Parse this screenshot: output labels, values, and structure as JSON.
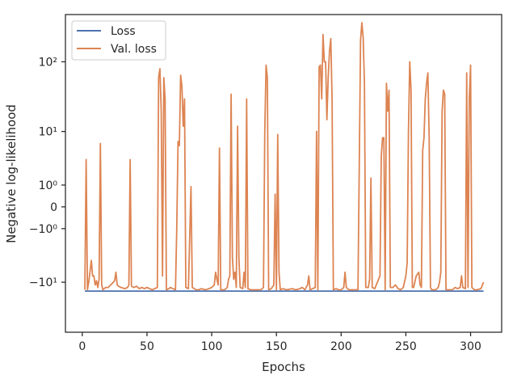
{
  "chart_data": {
    "type": "line",
    "title": "",
    "xlabel": "Epochs",
    "ylabel": "Negative log-likelihood",
    "xlim": [
      -13,
      324
    ],
    "ylim": [
      -53,
      453
    ],
    "yscale": "symlog",
    "x_ticks": [
      0,
      50,
      100,
      150,
      200,
      250,
      300
    ],
    "y_ticks": [
      {
        "value": -10,
        "label": "−10¹"
      },
      {
        "value": -1,
        "label": "−10⁰"
      },
      {
        "value": 0,
        "label": "0"
      },
      {
        "value": 1,
        "label": "10⁰"
      },
      {
        "value": 10,
        "label": "10¹"
      },
      {
        "value": 100,
        "label": "10²"
      }
    ],
    "grid": false,
    "legend_position": "top-left",
    "series": [
      {
        "name": "Loss",
        "color": "#4c72b0",
        "points": [
          [
            2,
            -13.6
          ],
          [
            100,
            -13.6
          ],
          [
            200,
            -13.6
          ],
          [
            310,
            -13.6
          ]
        ]
      },
      {
        "name": "Val. loss",
        "color": "#dd8452",
        "points": [
          [
            2,
            -13
          ],
          [
            3,
            3.5
          ],
          [
            4,
            -13
          ],
          [
            5,
            -10
          ],
          [
            7,
            -4.5
          ],
          [
            8,
            -8
          ],
          [
            9,
            -8
          ],
          [
            10,
            -11
          ],
          [
            11,
            -9.5
          ],
          [
            12,
            -12
          ],
          [
            13,
            -9
          ],
          [
            14,
            6.5
          ],
          [
            15,
            -11
          ],
          [
            16,
            -13
          ],
          [
            18,
            -12
          ],
          [
            20,
            -12
          ],
          [
            22,
            -11
          ],
          [
            24,
            -10
          ],
          [
            25,
            -9.5
          ],
          [
            26,
            -7
          ],
          [
            27,
            -11
          ],
          [
            28,
            -11.5
          ],
          [
            30,
            -12
          ],
          [
            33,
            -12.5
          ],
          [
            35,
            -12
          ],
          [
            36,
            -11
          ],
          [
            37,
            3.5
          ],
          [
            38,
            -11.5
          ],
          [
            40,
            -12
          ],
          [
            42,
            -11.5
          ],
          [
            44,
            -12.5
          ],
          [
            46,
            -12
          ],
          [
            48,
            -12.5
          ],
          [
            50,
            -12
          ],
          [
            52,
            -12.5
          ],
          [
            54,
            -13
          ],
          [
            56,
            -12.5
          ],
          [
            58,
            -12
          ],
          [
            59,
            60
          ],
          [
            60,
            80
          ],
          [
            61,
            20
          ],
          [
            62,
            -8
          ],
          [
            63,
            60
          ],
          [
            64,
            30
          ],
          [
            65,
            -13
          ],
          [
            67,
            -12.5
          ],
          [
            68,
            -12
          ],
          [
            70,
            -12.5
          ],
          [
            72,
            -13
          ],
          [
            73,
            -1
          ],
          [
            74,
            7
          ],
          [
            75,
            6
          ],
          [
            76,
            65
          ],
          [
            77,
            45
          ],
          [
            78,
            12
          ],
          [
            79,
            30
          ],
          [
            80,
            -12
          ],
          [
            82,
            -12.5
          ],
          [
            84,
            0.9
          ],
          [
            85,
            -12
          ],
          [
            88,
            -13
          ],
          [
            90,
            -13
          ],
          [
            92,
            -12.5
          ],
          [
            95,
            -13
          ],
          [
            98,
            -12.5
          ],
          [
            100,
            -12
          ],
          [
            102,
            -11
          ],
          [
            103,
            -7
          ],
          [
            104,
            -9
          ],
          [
            105,
            -11
          ],
          [
            106,
            5.5
          ],
          [
            107,
            -13
          ],
          [
            110,
            -13
          ],
          [
            112,
            -12
          ],
          [
            113,
            -9
          ],
          [
            114,
            -8
          ],
          [
            115,
            35
          ],
          [
            116,
            -4
          ],
          [
            117,
            -9
          ],
          [
            118,
            -7
          ],
          [
            119,
            -12
          ],
          [
            120,
            12
          ],
          [
            121,
            -4
          ],
          [
            122,
            -12
          ],
          [
            124,
            -12.5
          ],
          [
            125,
            -7
          ],
          [
            126,
            -12
          ],
          [
            127,
            30
          ],
          [
            128,
            -12.5
          ],
          [
            130,
            -13
          ],
          [
            132,
            -13
          ],
          [
            135,
            -13
          ],
          [
            138,
            -13
          ],
          [
            140,
            -12
          ],
          [
            141,
            10
          ],
          [
            142,
            90
          ],
          [
            143,
            60
          ],
          [
            144,
            -13
          ],
          [
            146,
            -12.5
          ],
          [
            148,
            -11
          ],
          [
            149,
            0.5
          ],
          [
            150,
            -13
          ],
          [
            151,
            9
          ],
          [
            152,
            -7
          ],
          [
            153,
            -13
          ],
          [
            155,
            -12.5
          ],
          [
            158,
            -13
          ],
          [
            162,
            -12.5
          ],
          [
            165,
            -13
          ],
          [
            168,
            -12.5
          ],
          [
            170,
            -12
          ],
          [
            172,
            -13
          ],
          [
            174,
            -11
          ],
          [
            175,
            -8
          ],
          [
            176,
            -13
          ],
          [
            178,
            -12.5
          ],
          [
            180,
            -12
          ],
          [
            181,
            10
          ],
          [
            182,
            -13
          ],
          [
            183,
            85
          ],
          [
            184,
            90
          ],
          [
            185,
            30
          ],
          [
            186,
            240
          ],
          [
            187,
            100
          ],
          [
            188,
            100
          ],
          [
            189,
            15
          ],
          [
            190,
            60
          ],
          [
            191,
            140
          ],
          [
            192,
            210
          ],
          [
            193,
            30
          ],
          [
            194,
            -13
          ],
          [
            196,
            -12.5
          ],
          [
            198,
            -13
          ],
          [
            200,
            -13
          ],
          [
            202,
            -12
          ],
          [
            203,
            -7
          ],
          [
            204,
            -12
          ],
          [
            206,
            -13
          ],
          [
            210,
            -13
          ],
          [
            213,
            -13
          ],
          [
            215,
            200
          ],
          [
            216,
            350
          ],
          [
            217,
            220
          ],
          [
            218,
            50
          ],
          [
            219,
            -12
          ],
          [
            221,
            -12
          ],
          [
            222,
            -9
          ],
          [
            223,
            1.5
          ],
          [
            224,
            -12
          ],
          [
            226,
            -12.5
          ],
          [
            228,
            -10
          ],
          [
            230,
            -8
          ],
          [
            231,
            4
          ],
          [
            232,
            8
          ],
          [
            233,
            8
          ],
          [
            234,
            -13
          ],
          [
            235,
            50
          ],
          [
            236,
            20
          ],
          [
            237,
            40
          ],
          [
            238,
            -12
          ],
          [
            240,
            -12
          ],
          [
            242,
            -11
          ],
          [
            244,
            -12.5
          ],
          [
            246,
            -13
          ],
          [
            248,
            -12
          ],
          [
            250,
            -8
          ],
          [
            251,
            -5
          ],
          [
            252,
            10
          ],
          [
            253,
            100
          ],
          [
            254,
            40
          ],
          [
            255,
            -12
          ],
          [
            256,
            -12
          ],
          [
            258,
            -8
          ],
          [
            260,
            -7
          ],
          [
            261,
            -11
          ],
          [
            262,
            -12
          ],
          [
            263,
            5
          ],
          [
            264,
            8
          ],
          [
            265,
            30
          ],
          [
            266,
            50
          ],
          [
            267,
            70
          ],
          [
            268,
            8
          ],
          [
            269,
            -12
          ],
          [
            270,
            -13
          ],
          [
            273,
            -13
          ],
          [
            275,
            -12
          ],
          [
            276,
            -10
          ],
          [
            277,
            -7
          ],
          [
            278,
            20
          ],
          [
            279,
            40
          ],
          [
            280,
            35
          ],
          [
            281,
            -13
          ],
          [
            283,
            -13
          ],
          [
            286,
            -13
          ],
          [
            288,
            -12
          ],
          [
            290,
            -12.5
          ],
          [
            292,
            -12
          ],
          [
            293,
            -8
          ],
          [
            294,
            -12
          ],
          [
            296,
            -12.5
          ],
          [
            297,
            70
          ],
          [
            298,
            -12
          ],
          [
            299,
            30
          ],
          [
            300,
            90
          ],
          [
            301,
            -12
          ],
          [
            303,
            -13
          ],
          [
            305,
            -13
          ],
          [
            308,
            -12.5
          ],
          [
            310,
            -10
          ]
        ]
      }
    ]
  }
}
